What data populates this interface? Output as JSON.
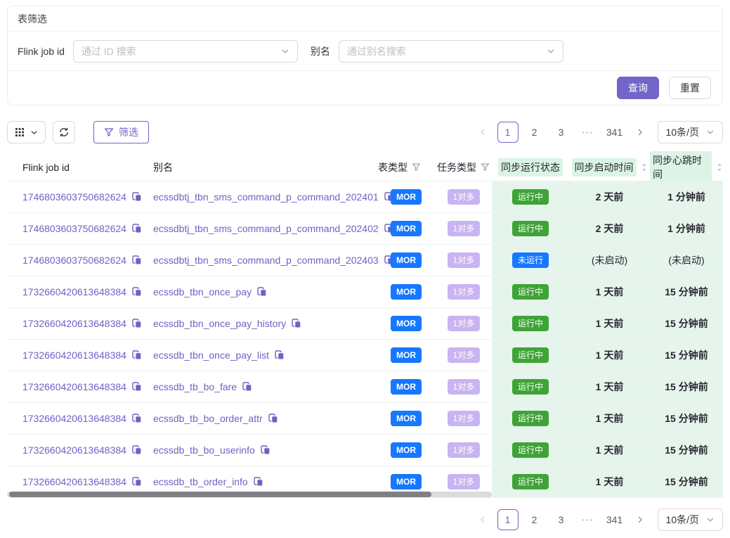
{
  "colors": {
    "primary": "#7265c9",
    "blue": "#1677ff",
    "green": "#3fa337",
    "lavender": "#c8b4f0",
    "fixed_col_bg": "#e6f5ec",
    "header_highlight": "#dcf4e5",
    "link": "#6e62c6"
  },
  "filter_card": {
    "title": "表筛选",
    "fields": [
      {
        "label": "Flink job id",
        "placeholder": "通过 ID 搜索"
      },
      {
        "label": "别名",
        "placeholder": "通过别名搜索"
      }
    ],
    "query_label": "查询",
    "reset_label": "重置"
  },
  "toolbar": {
    "filter_label": "筛选"
  },
  "pagination": {
    "active_page": "1",
    "pages": [
      "1",
      "2",
      "3",
      "···",
      "341"
    ],
    "page_size": "10条/页"
  },
  "table": {
    "columns": [
      {
        "label": "Flink job id",
        "key": "id"
      },
      {
        "label": "别名",
        "key": "alias"
      },
      {
        "label": "表类型",
        "key": "table_type",
        "filter": true
      },
      {
        "label": "任务类型",
        "key": "task_type",
        "filter": true
      },
      {
        "label": "同步运行状态",
        "key": "status",
        "highlight": true
      },
      {
        "label": "同步启动时间",
        "key": "start_time",
        "highlight": true,
        "sorter": true
      },
      {
        "label": "同步心跳时间",
        "key": "heartbeat_time",
        "highlight": true,
        "sorter": true
      }
    ],
    "rows": [
      {
        "id": "1746803603750682624",
        "alias": "ecssdbtj_tbn_sms_command_p_command_202401",
        "table_type": "MOR",
        "task_type": "1对多",
        "status": "运行中",
        "status_color": "green",
        "start_time": "2 天前",
        "heartbeat_time": "1 分钟前",
        "started": true
      },
      {
        "id": "1746803603750682624",
        "alias": "ecssdbtj_tbn_sms_command_p_command_202402",
        "table_type": "MOR",
        "task_type": "1对多",
        "status": "运行中",
        "status_color": "green",
        "start_time": "2 天前",
        "heartbeat_time": "1 分钟前",
        "started": true
      },
      {
        "id": "1746803603750682624",
        "alias": "ecssdbtj_tbn_sms_command_p_command_202403",
        "table_type": "MOR",
        "task_type": "1对多",
        "status": "未运行",
        "status_color": "blue",
        "start_time": "(未启动)",
        "heartbeat_time": "(未启动)",
        "started": false
      },
      {
        "id": "1732660420613648384",
        "alias": "ecssdb_tbn_once_pay",
        "table_type": "MOR",
        "task_type": "1对多",
        "status": "运行中",
        "status_color": "green",
        "start_time": "1 天前",
        "heartbeat_time": "15 分钟前",
        "started": true
      },
      {
        "id": "1732660420613648384",
        "alias": "ecssdb_tbn_once_pay_history",
        "table_type": "MOR",
        "task_type": "1对多",
        "status": "运行中",
        "status_color": "green",
        "start_time": "1 天前",
        "heartbeat_time": "15 分钟前",
        "started": true
      },
      {
        "id": "1732660420613648384",
        "alias": "ecssdb_tbn_once_pay_list",
        "table_type": "MOR",
        "task_type": "1对多",
        "status": "运行中",
        "status_color": "green",
        "start_time": "1 天前",
        "heartbeat_time": "15 分钟前",
        "started": true
      },
      {
        "id": "1732660420613648384",
        "alias": "ecssdb_tb_bo_fare",
        "table_type": "MOR",
        "task_type": "1对多",
        "status": "运行中",
        "status_color": "green",
        "start_time": "1 天前",
        "heartbeat_time": "15 分钟前",
        "started": true
      },
      {
        "id": "1732660420613648384",
        "alias": "ecssdb_tb_bo_order_attr",
        "table_type": "MOR",
        "task_type": "1对多",
        "status": "运行中",
        "status_color": "green",
        "start_time": "1 天前",
        "heartbeat_time": "15 分钟前",
        "started": true
      },
      {
        "id": "1732660420613648384",
        "alias": "ecssdb_tb_bo_userinfo",
        "table_type": "MOR",
        "task_type": "1对多",
        "status": "运行中",
        "status_color": "green",
        "start_time": "1 天前",
        "heartbeat_time": "15 分钟前",
        "started": true
      },
      {
        "id": "1732660420613648384",
        "alias": "ecssdb_tb_order_info",
        "table_type": "MOR",
        "task_type": "1对多",
        "status": "运行中",
        "status_color": "green",
        "start_time": "1 天前",
        "heartbeat_time": "15 分钟前",
        "started": true
      }
    ]
  },
  "icons": {
    "grid": "grid-icon (3x3 squares)",
    "refresh": "refresh-icon (sync arrows)",
    "filter": "filter-icon (funnel)",
    "copy": "copy-icon (overlapping squares)",
    "chevron_down": "chevron-down-icon",
    "sorter": "sort-icon (up/down carets)",
    "prev": "chevron-left-icon",
    "next": "chevron-right-icon"
  }
}
